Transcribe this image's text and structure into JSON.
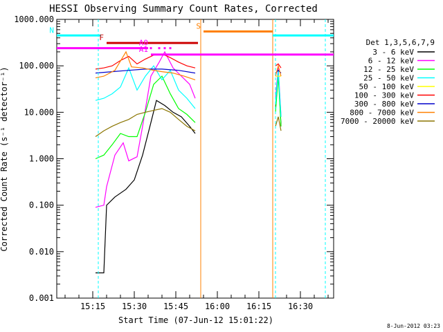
{
  "chart_data": {
    "type": "line",
    "title": "HESSI Observing Summary Count Rates, Corrected",
    "xlabel": "Start Time (07-Jun-12 15:01:22)",
    "ylabel": "Corrected Count Rate (s⁻¹ detector⁻¹)",
    "xlim": [
      "15:02",
      "16:42"
    ],
    "ylim": [
      0.001,
      1000
    ],
    "yscale": "log",
    "x_ticks": [
      "15:15",
      "15:30",
      "15:45",
      "16:00",
      "16:15",
      "16:30"
    ],
    "y_ticks": [
      "0.001",
      "0.010",
      "0.100",
      "1.000",
      "10.000",
      "100.000",
      "1000.000"
    ],
    "legend_title": "Det 1,3,5,6,7,9",
    "legend_position": "right",
    "series": [
      {
        "name": "3 - 6 keV",
        "color": "#000000",
        "x": [
          "15:16",
          "15:19",
          "15:20",
          "15:23",
          "15:27",
          "15:30",
          "15:33",
          "15:36",
          "15:38",
          "15:41",
          "15:44",
          "15:47",
          "15:50",
          "15:52",
          "16:21",
          "16:22",
          "16:23"
        ],
        "y": [
          0.0035,
          0.0035,
          0.1,
          0.15,
          0.22,
          0.35,
          1.2,
          6,
          18,
          14,
          10,
          8,
          5,
          3.5,
          12,
          80,
          5
        ]
      },
      {
        "name": "6 - 12 keV",
        "color": "#ff00ff",
        "x": [
          "15:16",
          "15:19",
          "15:20",
          "15:23",
          "15:26",
          "15:28",
          "15:31",
          "15:33",
          "15:36",
          "15:39",
          "15:41",
          "15:44",
          "15:47",
          "15:50",
          "15:52",
          "16:21",
          "16:22",
          "16:23"
        ],
        "y": [
          0.09,
          0.1,
          0.25,
          1.2,
          2.2,
          0.9,
          1.1,
          5,
          60,
          120,
          200,
          90,
          60,
          40,
          20,
          20,
          90,
          8
        ]
      },
      {
        "name": "12 - 25 keV",
        "color": "#00ff00",
        "x": [
          "15:16",
          "15:19",
          "15:22",
          "15:25",
          "15:28",
          "15:31",
          "15:34",
          "15:37",
          "15:40",
          "15:43",
          "15:46",
          "15:49",
          "15:52",
          "16:21",
          "16:22",
          "16:23"
        ],
        "y": [
          1,
          1.2,
          2,
          3.5,
          3,
          3,
          10,
          40,
          60,
          25,
          12,
          9,
          6,
          10,
          60,
          5
        ]
      },
      {
        "name": "25 - 50 keV",
        "color": "#00ffff",
        "x": [
          "15:16",
          "15:19",
          "15:22",
          "15:25",
          "15:28",
          "15:31",
          "15:34",
          "15:37",
          "15:40",
          "15:43",
          "15:46",
          "15:49",
          "15:52",
          "16:21",
          "16:22",
          "16:23"
        ],
        "y": [
          18,
          20,
          25,
          35,
          90,
          30,
          60,
          100,
          50,
          80,
          30,
          20,
          12,
          15,
          80,
          8
        ]
      },
      {
        "name": "50 - 100 keV",
        "color": "#ffff00",
        "x": [
          "15:16",
          "15:52",
          "16:21",
          "16:23"
        ],
        "y": [
          60,
          60,
          60,
          60
        ]
      },
      {
        "name": "100 - 300 keV",
        "color": "#ff0000",
        "x": [
          "15:16",
          "15:19",
          "15:22",
          "15:25",
          "15:28",
          "15:31",
          "15:34",
          "15:37",
          "15:40",
          "15:43",
          "15:46",
          "15:49",
          "15:52",
          "16:21",
          "16:22",
          "16:23"
        ],
        "y": [
          85,
          90,
          100,
          130,
          160,
          110,
          140,
          170,
          180,
          150,
          120,
          100,
          90,
          100,
          110,
          90
        ]
      },
      {
        "name": "300 - 800 keV",
        "color": "#0000cc",
        "x": [
          "15:16",
          "15:22",
          "15:28",
          "15:34",
          "15:40",
          "15:46",
          "15:52",
          "16:21",
          "16:22",
          "16:23"
        ],
        "y": [
          70,
          75,
          80,
          85,
          85,
          80,
          70,
          70,
          80,
          70
        ]
      },
      {
        "name": "800 - 7000 keV",
        "color": "#ff8000",
        "x": [
          "15:16",
          "15:19",
          "15:23",
          "15:27",
          "15:29",
          "15:33",
          "15:37",
          "15:40",
          "15:44",
          "15:48",
          "15:52",
          "16:21",
          "16:22",
          "16:23"
        ],
        "y": [
          55,
          60,
          80,
          200,
          95,
          90,
          80,
          75,
          70,
          60,
          50,
          60,
          100,
          60
        ]
      },
      {
        "name": "7000 - 20000 keV",
        "color": "#8b7500",
        "x": [
          "15:16",
          "15:19",
          "15:22",
          "15:25",
          "15:28",
          "15:31",
          "15:34",
          "15:37",
          "15:40",
          "15:43",
          "15:46",
          "15:49",
          "15:52",
          "16:21",
          "16:22",
          "16:23"
        ],
        "y": [
          3,
          4,
          5,
          6,
          7,
          9,
          10,
          11,
          12,
          10,
          7,
          5,
          4,
          5,
          8,
          4
        ]
      }
    ],
    "flags": [
      {
        "label": "N",
        "color": "#00ffff",
        "y": 450,
        "segments": [
          [
            "15:02",
            "15:18"
          ],
          [
            "16:20",
            "16:42"
          ]
        ]
      },
      {
        "label": "F",
        "color": "#cc0000",
        "y": 310,
        "segments": [
          [
            "15:20",
            "15:53"
          ]
        ]
      },
      {
        "label": "",
        "color": "#ff00ff",
        "y": 240,
        "segments": [
          [
            "15:02",
            "15:35"
          ]
        ]
      },
      {
        "label": "A0",
        "color": "#ff00ff",
        "y": 240,
        "segments": [
          [
            "15:36",
            "15:36"
          ],
          [
            "15:39",
            "15:39"
          ],
          [
            "15:41",
            "15:41"
          ],
          [
            "15:43",
            "15:43"
          ]
        ]
      },
      {
        "label": "A1",
        "color": "#ff00ff",
        "y": 175,
        "segments": [
          [
            "15:36",
            "16:42"
          ]
        ]
      },
      {
        "label": "S",
        "color": "#ff8000",
        "y": 550,
        "segments": [
          [
            "15:55",
            "16:20"
          ]
        ]
      }
    ],
    "vlines": [
      {
        "x": "15:17",
        "color": "#00ffff",
        "style": "dashed"
      },
      {
        "x": "15:54",
        "color": "#ff8000",
        "style": "solid"
      },
      {
        "x": "16:20",
        "color": "#ff8000",
        "style": "solid"
      },
      {
        "x": "16:21",
        "color": "#00ffff",
        "style": "dashed"
      },
      {
        "x": "16:39",
        "color": "#00ffff",
        "style": "dashed"
      }
    ]
  },
  "footer": {
    "date_stamp": "8-Jun-2012 03:23"
  }
}
